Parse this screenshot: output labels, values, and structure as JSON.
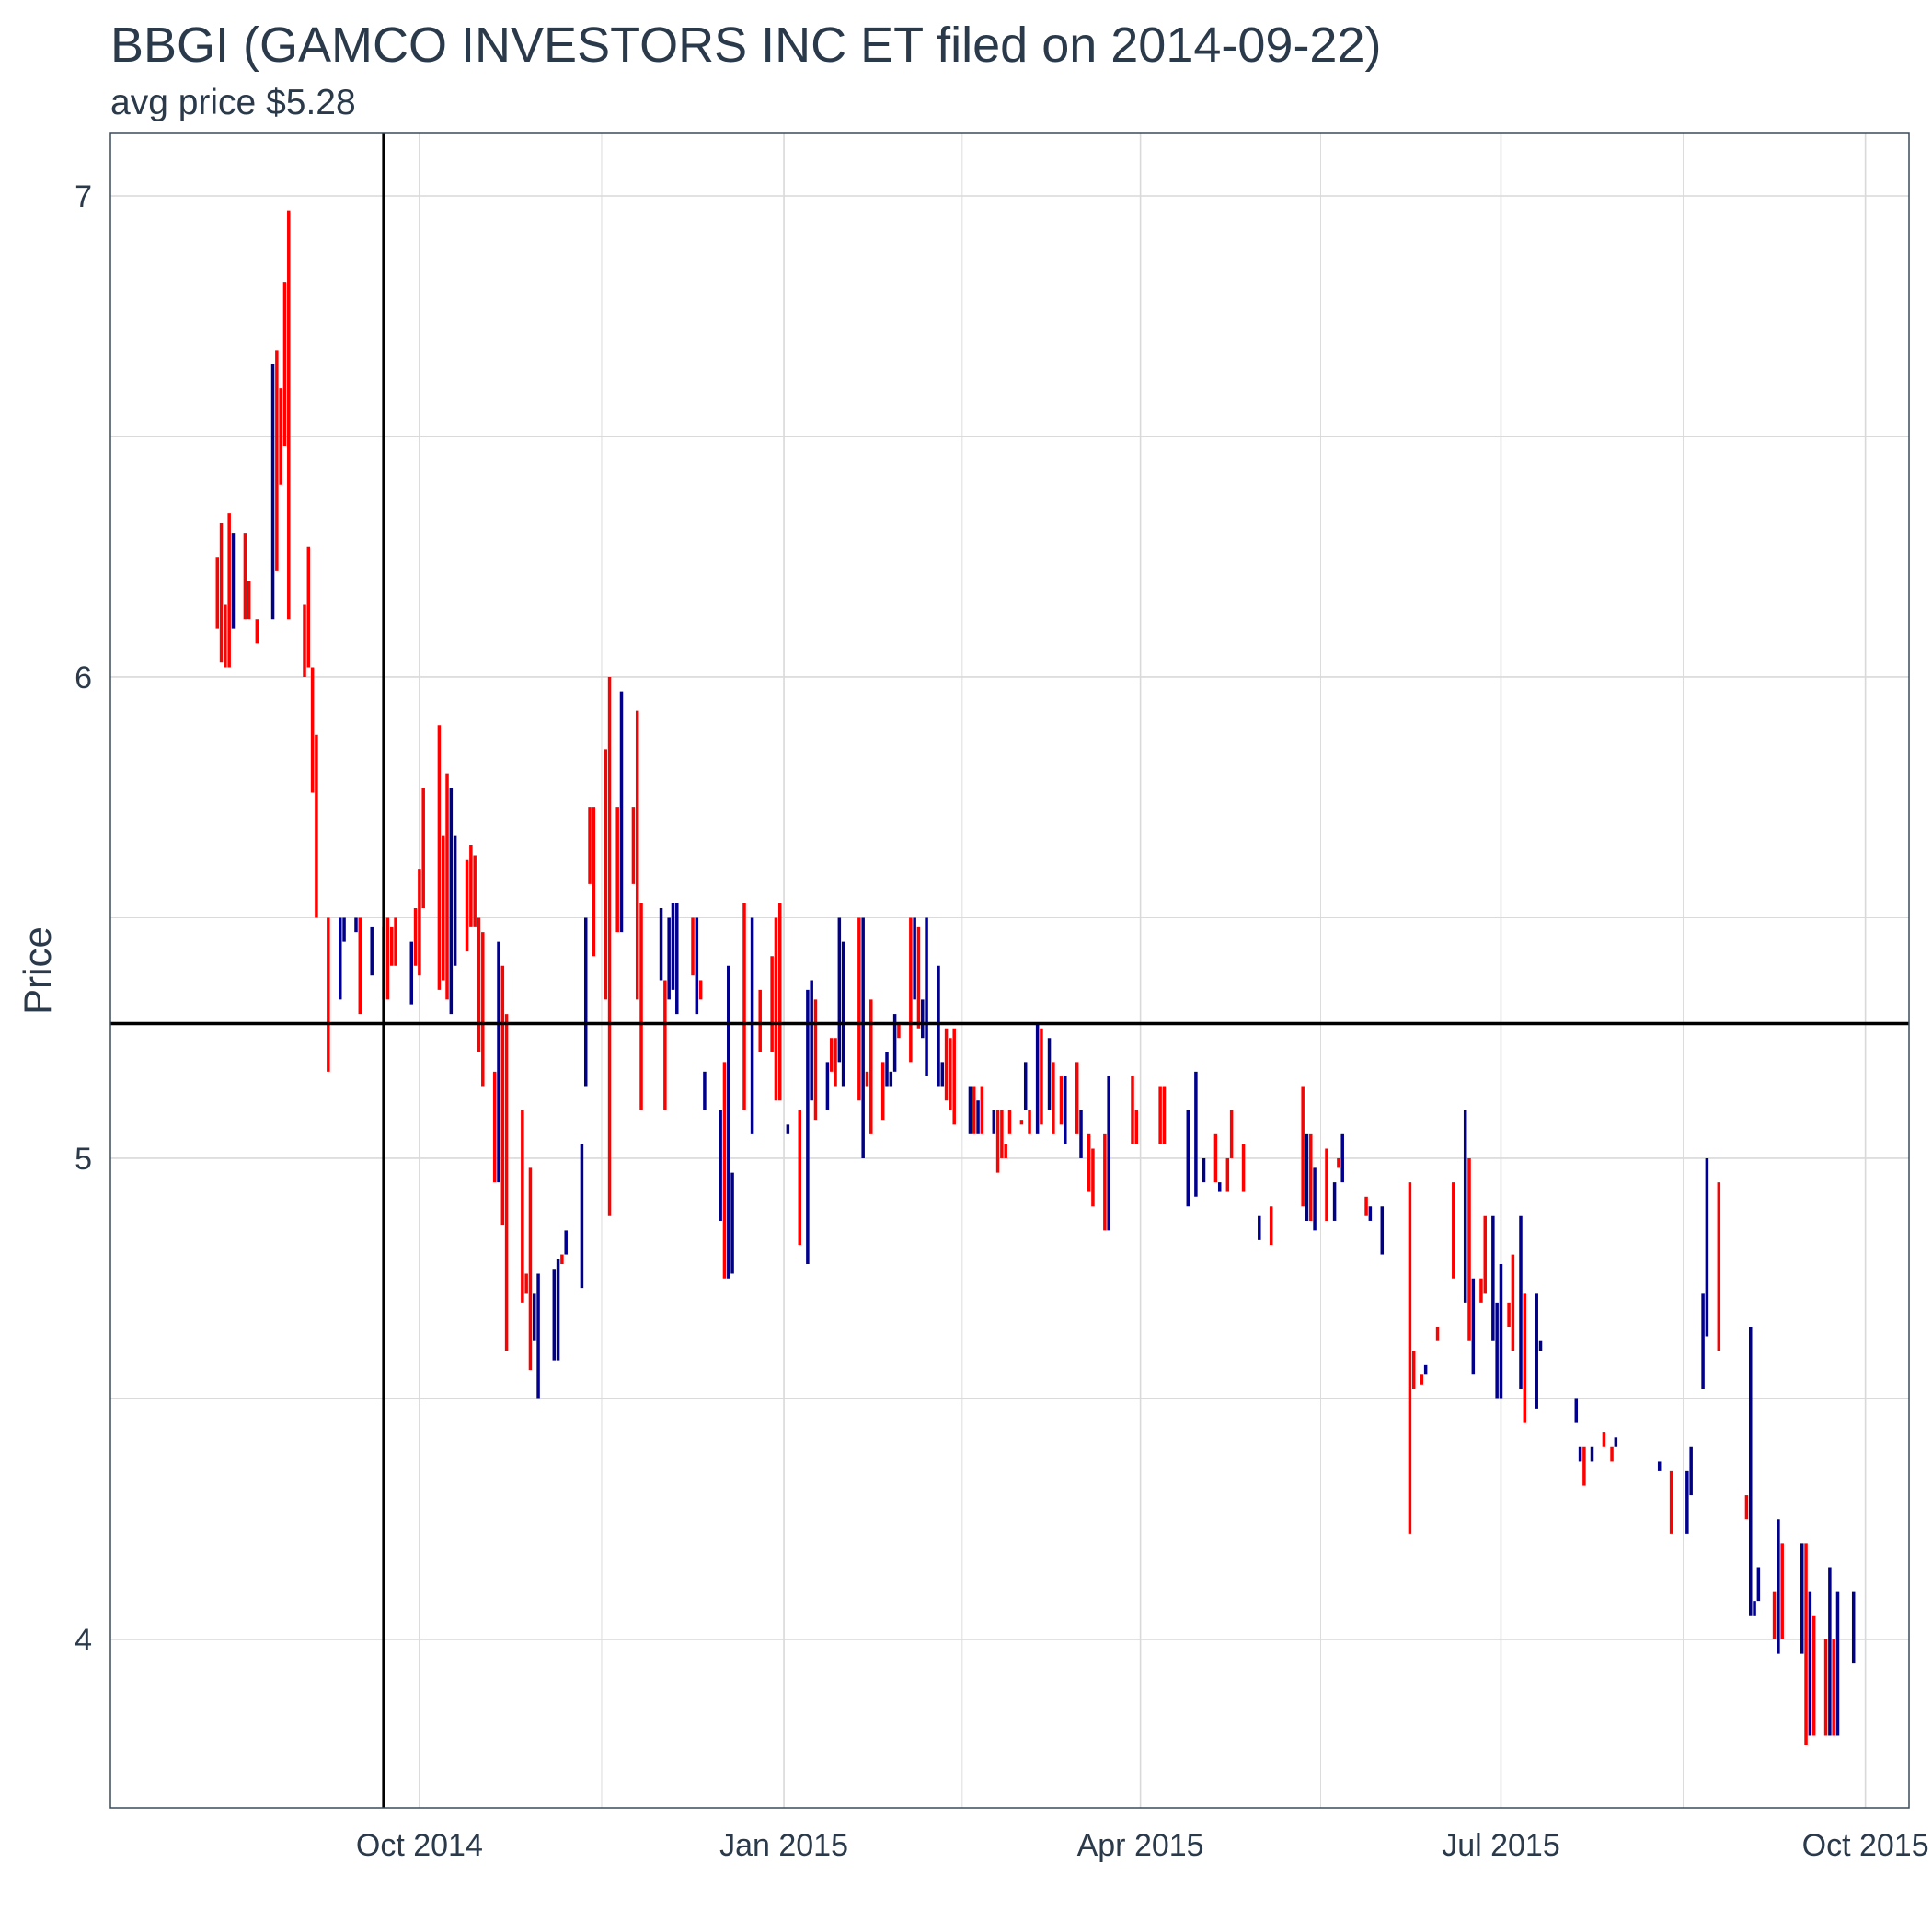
{
  "chart_data": {
    "type": "ohlc",
    "title": "BBGI (GAMCO INVESTORS  INC ET filed on 2014-09-22)",
    "subtitle": "avg price $5.28",
    "xlabel": "",
    "ylabel": "Price",
    "x_ticks": [
      {
        "date": "2014-10-01",
        "label": "Oct 2014"
      },
      {
        "date": "2015-01-01",
        "label": "Jan 2015"
      },
      {
        "date": "2015-04-01",
        "label": "Apr 2015"
      },
      {
        "date": "2015-07-01",
        "label": "Jul 2015"
      },
      {
        "date": "2015-10-01",
        "label": "Oct 2015"
      }
    ],
    "y_ticks": [
      4,
      5,
      6,
      7
    ],
    "xlim": [
      "2014-07-15",
      "2015-10-12"
    ],
    "ylim": [
      3.65,
      7.13
    ],
    "grid": true,
    "reference_lines": {
      "vline_date": "2014-09-22",
      "hline_value": 5.28
    },
    "colors": {
      "up": "#00008b",
      "down": "#ff0000",
      "reference": "#000000",
      "grid": "#d9d9d9",
      "text": "#2b3a4a"
    },
    "bars": [
      [
        "2014-08-11",
        6.25,
        6.1,
        "d"
      ],
      [
        "2014-08-12",
        6.32,
        6.03,
        "d"
      ],
      [
        "2014-08-13",
        6.15,
        6.02,
        "d"
      ],
      [
        "2014-08-14",
        6.34,
        6.02,
        "d"
      ],
      [
        "2014-08-15",
        6.3,
        6.1,
        "u"
      ],
      [
        "2014-08-18",
        6.3,
        6.12,
        "d"
      ],
      [
        "2014-08-19",
        6.2,
        6.12,
        "d"
      ],
      [
        "2014-08-21",
        6.12,
        6.07,
        "d"
      ],
      [
        "2014-08-25",
        6.65,
        6.12,
        "u"
      ],
      [
        "2014-08-26",
        6.68,
        6.22,
        "d"
      ],
      [
        "2014-08-27",
        6.6,
        6.4,
        "d"
      ],
      [
        "2014-08-28",
        6.82,
        6.48,
        "d"
      ],
      [
        "2014-08-29",
        6.97,
        6.12,
        "d"
      ],
      [
        "2014-09-02",
        6.15,
        6.0,
        "d"
      ],
      [
        "2014-09-03",
        6.27,
        6.02,
        "d"
      ],
      [
        "2014-09-04",
        6.02,
        5.76,
        "d"
      ],
      [
        "2014-09-05",
        5.88,
        5.5,
        "d"
      ],
      [
        "2014-09-08",
        5.5,
        5.18,
        "d"
      ],
      [
        "2014-09-11",
        5.5,
        5.33,
        "u"
      ],
      [
        "2014-09-12",
        5.5,
        5.45,
        "u"
      ],
      [
        "2014-09-15",
        5.5,
        5.47,
        "u"
      ],
      [
        "2014-09-16",
        5.5,
        5.3,
        "d"
      ],
      [
        "2014-09-19",
        5.48,
        5.38,
        "u"
      ],
      [
        "2014-09-22",
        5.48,
        5.33,
        "d"
      ],
      [
        "2014-09-23",
        5.5,
        5.33,
        "d"
      ],
      [
        "2014-09-24",
        5.48,
        5.4,
        "d"
      ],
      [
        "2014-09-25",
        5.5,
        5.4,
        "d"
      ],
      [
        "2014-09-29",
        5.45,
        5.32,
        "u"
      ],
      [
        "2014-09-30",
        5.52,
        5.4,
        "d"
      ],
      [
        "2014-10-01",
        5.6,
        5.38,
        "d"
      ],
      [
        "2014-10-02",
        5.77,
        5.52,
        "d"
      ],
      [
        "2014-10-06",
        5.9,
        5.35,
        "d"
      ],
      [
        "2014-10-07",
        5.67,
        5.37,
        "d"
      ],
      [
        "2014-10-08",
        5.8,
        5.33,
        "d"
      ],
      [
        "2014-10-09",
        5.77,
        5.3,
        "u"
      ],
      [
        "2014-10-10",
        5.67,
        5.4,
        "u"
      ],
      [
        "2014-10-13",
        5.62,
        5.43,
        "d"
      ],
      [
        "2014-10-14",
        5.65,
        5.48,
        "d"
      ],
      [
        "2014-10-15",
        5.63,
        5.48,
        "d"
      ],
      [
        "2014-10-16",
        5.5,
        5.22,
        "d"
      ],
      [
        "2014-10-17",
        5.47,
        5.15,
        "d"
      ],
      [
        "2014-10-20",
        5.18,
        4.95,
        "d"
      ],
      [
        "2014-10-21",
        5.45,
        4.95,
        "u"
      ],
      [
        "2014-10-22",
        5.4,
        4.86,
        "d"
      ],
      [
        "2014-10-23",
        5.3,
        4.6,
        "d"
      ],
      [
        "2014-10-27",
        5.1,
        4.7,
        "d"
      ],
      [
        "2014-10-28",
        4.76,
        4.72,
        "d"
      ],
      [
        "2014-10-29",
        4.98,
        4.56,
        "d"
      ],
      [
        "2014-10-30",
        4.72,
        4.62,
        "u"
      ],
      [
        "2014-10-31",
        4.76,
        4.5,
        "u"
      ],
      [
        "2014-11-04",
        4.77,
        4.58,
        "u"
      ],
      [
        "2014-11-05",
        4.79,
        4.58,
        "u"
      ],
      [
        "2014-11-06",
        4.8,
        4.78,
        "d"
      ],
      [
        "2014-11-07",
        4.85,
        4.8,
        "u"
      ],
      [
        "2014-11-11",
        5.03,
        4.73,
        "u"
      ],
      [
        "2014-11-12",
        5.5,
        5.15,
        "u"
      ],
      [
        "2014-11-13",
        5.73,
        5.57,
        "d"
      ],
      [
        "2014-11-14",
        5.73,
        5.42,
        "d"
      ],
      [
        "2014-11-17",
        5.85,
        5.33,
        "d"
      ],
      [
        "2014-11-18",
        6.0,
        4.88,
        "d"
      ],
      [
        "2014-11-20",
        5.73,
        5.47,
        "d"
      ],
      [
        "2014-11-21",
        5.97,
        5.47,
        "u"
      ],
      [
        "2014-11-24",
        5.73,
        5.57,
        "d"
      ],
      [
        "2014-11-25",
        5.93,
        5.33,
        "d"
      ],
      [
        "2014-11-26",
        5.53,
        5.1,
        "d"
      ],
      [
        "2014-12-01",
        5.52,
        5.37,
        "u"
      ],
      [
        "2014-12-02",
        5.37,
        5.1,
        "d"
      ],
      [
        "2014-12-03",
        5.5,
        5.33,
        "u"
      ],
      [
        "2014-12-04",
        5.53,
        5.35,
        "u"
      ],
      [
        "2014-12-05",
        5.53,
        5.3,
        "u"
      ],
      [
        "2014-12-09",
        5.5,
        5.38,
        "d"
      ],
      [
        "2014-12-10",
        5.5,
        5.3,
        "u"
      ],
      [
        "2014-12-11",
        5.37,
        5.33,
        "d"
      ],
      [
        "2014-12-12",
        5.18,
        5.1,
        "u"
      ],
      [
        "2014-12-16",
        5.1,
        4.87,
        "u"
      ],
      [
        "2014-12-17",
        5.2,
        4.75,
        "d"
      ],
      [
        "2014-12-18",
        5.4,
        4.75,
        "u"
      ],
      [
        "2014-12-19",
        4.97,
        4.76,
        "u"
      ],
      [
        "2014-12-22",
        5.53,
        5.1,
        "d"
      ],
      [
        "2014-12-24",
        5.5,
        5.05,
        "u"
      ],
      [
        "2014-12-26",
        5.35,
        5.22,
        "d"
      ],
      [
        "2014-12-29",
        5.42,
        5.22,
        "d"
      ],
      [
        "2014-12-30",
        5.5,
        5.12,
        "d"
      ],
      [
        "2014-12-31",
        5.53,
        5.12,
        "d"
      ],
      [
        "2015-01-02",
        5.07,
        5.05,
        "u"
      ],
      [
        "2015-01-05",
        5.1,
        4.82,
        "d"
      ],
      [
        "2015-01-07",
        5.35,
        4.78,
        "u"
      ],
      [
        "2015-01-08",
        5.37,
        5.12,
        "u"
      ],
      [
        "2015-01-09",
        5.33,
        5.08,
        "d"
      ],
      [
        "2015-01-12",
        5.2,
        5.1,
        "u"
      ],
      [
        "2015-01-13",
        5.25,
        5.18,
        "d"
      ],
      [
        "2015-01-14",
        5.25,
        5.15,
        "d"
      ],
      [
        "2015-01-15",
        5.5,
        5.2,
        "u"
      ],
      [
        "2015-01-16",
        5.45,
        5.15,
        "u"
      ],
      [
        "2015-01-20",
        5.5,
        5.12,
        "d"
      ],
      [
        "2015-01-21",
        5.5,
        5.0,
        "u"
      ],
      [
        "2015-01-22",
        5.18,
        5.15,
        "d"
      ],
      [
        "2015-01-23",
        5.33,
        5.05,
        "d"
      ],
      [
        "2015-01-26",
        5.2,
        5.08,
        "d"
      ],
      [
        "2015-01-27",
        5.22,
        5.15,
        "u"
      ],
      [
        "2015-01-28",
        5.18,
        5.15,
        "u"
      ],
      [
        "2015-01-29",
        5.3,
        5.18,
        "u"
      ],
      [
        "2015-01-30",
        5.28,
        5.25,
        "d"
      ],
      [
        "2015-02-02",
        5.5,
        5.2,
        "d"
      ],
      [
        "2015-02-03",
        5.5,
        5.33,
        "u"
      ],
      [
        "2015-02-04",
        5.48,
        5.27,
        "d"
      ],
      [
        "2015-02-05",
        5.33,
        5.25,
        "u"
      ],
      [
        "2015-02-06",
        5.5,
        5.17,
        "u"
      ],
      [
        "2015-02-09",
        5.4,
        5.15,
        "u"
      ],
      [
        "2015-02-10",
        5.2,
        5.15,
        "u"
      ],
      [
        "2015-02-11",
        5.27,
        5.12,
        "d"
      ],
      [
        "2015-02-12",
        5.25,
        5.1,
        "d"
      ],
      [
        "2015-02-13",
        5.27,
        5.07,
        "d"
      ],
      [
        "2015-02-17",
        5.15,
        5.05,
        "u"
      ],
      [
        "2015-02-18",
        5.15,
        5.05,
        "d"
      ],
      [
        "2015-02-19",
        5.12,
        5.05,
        "u"
      ],
      [
        "2015-02-20",
        5.15,
        5.05,
        "d"
      ],
      [
        "2015-02-23",
        5.1,
        5.05,
        "u"
      ],
      [
        "2015-02-24",
        5.1,
        4.97,
        "d"
      ],
      [
        "2015-02-25",
        5.1,
        5.0,
        "d"
      ],
      [
        "2015-02-26",
        5.03,
        5.0,
        "d"
      ],
      [
        "2015-02-27",
        5.1,
        5.05,
        "d"
      ],
      [
        "2015-03-02",
        5.08,
        5.07,
        "d"
      ],
      [
        "2015-03-03",
        5.2,
        5.1,
        "u"
      ],
      [
        "2015-03-04",
        5.1,
        5.05,
        "d"
      ],
      [
        "2015-03-06",
        5.28,
        5.05,
        "u"
      ],
      [
        "2015-03-07",
        5.27,
        5.07,
        "d"
      ],
      [
        "2015-03-09",
        5.25,
        5.1,
        "u"
      ],
      [
        "2015-03-10",
        5.2,
        5.05,
        "d"
      ],
      [
        "2015-03-12",
        5.17,
        5.07,
        "d"
      ],
      [
        "2015-03-13",
        5.17,
        5.03,
        "u"
      ],
      [
        "2015-03-16",
        5.2,
        5.05,
        "d"
      ],
      [
        "2015-03-17",
        5.1,
        5.0,
        "u"
      ],
      [
        "2015-03-19",
        5.05,
        4.93,
        "d"
      ],
      [
        "2015-03-20",
        5.02,
        4.9,
        "d"
      ],
      [
        "2015-03-23",
        5.05,
        4.85,
        "d"
      ],
      [
        "2015-03-24",
        5.17,
        4.85,
        "u"
      ],
      [
        "2015-03-30",
        5.17,
        5.03,
        "d"
      ],
      [
        "2015-03-31",
        5.1,
        5.03,
        "d"
      ],
      [
        "2015-04-06",
        5.15,
        5.03,
        "d"
      ],
      [
        "2015-04-07",
        5.15,
        5.03,
        "d"
      ],
      [
        "2015-04-13",
        5.1,
        4.9,
        "u"
      ],
      [
        "2015-04-15",
        5.18,
        4.92,
        "u"
      ],
      [
        "2015-04-17",
        5.0,
        4.95,
        "u"
      ],
      [
        "2015-04-20",
        5.05,
        4.95,
        "d"
      ],
      [
        "2015-04-21",
        4.95,
        4.93,
        "u"
      ],
      [
        "2015-04-23",
        5.0,
        4.93,
        "d"
      ],
      [
        "2015-04-24",
        5.1,
        5.0,
        "d"
      ],
      [
        "2015-04-27",
        5.03,
        4.93,
        "d"
      ],
      [
        "2015-05-01",
        4.88,
        4.83,
        "u"
      ],
      [
        "2015-05-04",
        4.9,
        4.82,
        "d"
      ],
      [
        "2015-05-12",
        5.15,
        4.9,
        "d"
      ],
      [
        "2015-05-13",
        5.05,
        4.87,
        "u"
      ],
      [
        "2015-05-14",
        5.05,
        4.87,
        "d"
      ],
      [
        "2015-05-15",
        4.98,
        4.85,
        "u"
      ],
      [
        "2015-05-18",
        5.02,
        4.87,
        "d"
      ],
      [
        "2015-05-20",
        4.95,
        4.87,
        "u"
      ],
      [
        "2015-05-21",
        5.0,
        4.98,
        "d"
      ],
      [
        "2015-05-22",
        5.05,
        4.95,
        "u"
      ],
      [
        "2015-05-28",
        4.92,
        4.88,
        "d"
      ],
      [
        "2015-05-29",
        4.9,
        4.87,
        "u"
      ],
      [
        "2015-06-01",
        4.9,
        4.8,
        "u"
      ],
      [
        "2015-06-08",
        4.95,
        4.22,
        "d"
      ],
      [
        "2015-06-09",
        4.6,
        4.52,
        "d"
      ],
      [
        "2015-06-11",
        4.55,
        4.53,
        "d"
      ],
      [
        "2015-06-12",
        4.57,
        4.55,
        "u"
      ],
      [
        "2015-06-15",
        4.65,
        4.62,
        "d"
      ],
      [
        "2015-06-19",
        4.95,
        4.75,
        "d"
      ],
      [
        "2015-06-22",
        5.1,
        4.7,
        "u"
      ],
      [
        "2015-06-23",
        5.0,
        4.62,
        "d"
      ],
      [
        "2015-06-24",
        4.75,
        4.55,
        "u"
      ],
      [
        "2015-06-26",
        4.75,
        4.7,
        "d"
      ],
      [
        "2015-06-27",
        4.88,
        4.72,
        "d"
      ],
      [
        "2015-06-29",
        4.88,
        4.62,
        "u"
      ],
      [
        "2015-06-30",
        4.7,
        4.5,
        "u"
      ],
      [
        "2015-07-01",
        4.78,
        4.5,
        "u"
      ],
      [
        "2015-07-03",
        4.7,
        4.65,
        "d"
      ],
      [
        "2015-07-04",
        4.8,
        4.6,
        "d"
      ],
      [
        "2015-07-06",
        4.88,
        4.52,
        "u"
      ],
      [
        "2015-07-07",
        4.72,
        4.45,
        "d"
      ],
      [
        "2015-07-10",
        4.72,
        4.48,
        "u"
      ],
      [
        "2015-07-11",
        4.62,
        4.6,
        "u"
      ],
      [
        "2015-07-20",
        4.5,
        4.45,
        "u"
      ],
      [
        "2015-07-21",
        4.4,
        4.37,
        "u"
      ],
      [
        "2015-07-22",
        4.4,
        4.32,
        "d"
      ],
      [
        "2015-07-24",
        4.4,
        4.37,
        "u"
      ],
      [
        "2015-07-27",
        4.43,
        4.4,
        "d"
      ],
      [
        "2015-07-29",
        4.4,
        4.37,
        "d"
      ],
      [
        "2015-07-30",
        4.42,
        4.4,
        "u"
      ],
      [
        "2015-08-10",
        4.37,
        4.35,
        "u"
      ],
      [
        "2015-08-13",
        4.35,
        4.22,
        "d"
      ],
      [
        "2015-08-17",
        4.35,
        4.22,
        "u"
      ],
      [
        "2015-08-18",
        4.4,
        4.3,
        "u"
      ],
      [
        "2015-08-21",
        4.72,
        4.52,
        "u"
      ],
      [
        "2015-08-22",
        5.0,
        4.63,
        "u"
      ],
      [
        "2015-08-25",
        4.95,
        4.6,
        "d"
      ],
      [
        "2015-09-01",
        4.3,
        4.25,
        "d"
      ],
      [
        "2015-09-02",
        4.65,
        4.05,
        "u"
      ],
      [
        "2015-09-03",
        4.08,
        4.05,
        "u"
      ],
      [
        "2015-09-04",
        4.15,
        4.08,
        "u"
      ],
      [
        "2015-09-08",
        4.1,
        4.0,
        "d"
      ],
      [
        "2015-09-09",
        4.25,
        3.97,
        "u"
      ],
      [
        "2015-09-10",
        4.2,
        4.0,
        "d"
      ],
      [
        "2015-09-15",
        4.2,
        3.97,
        "u"
      ],
      [
        "2015-09-16",
        4.2,
        3.78,
        "d"
      ],
      [
        "2015-09-17",
        4.1,
        3.8,
        "u"
      ],
      [
        "2015-09-18",
        4.05,
        3.8,
        "d"
      ],
      [
        "2015-09-21",
        4.0,
        3.8,
        "d"
      ],
      [
        "2015-09-22",
        4.15,
        3.8,
        "u"
      ],
      [
        "2015-09-23",
        4.0,
        3.8,
        "d"
      ],
      [
        "2015-09-24",
        4.1,
        3.8,
        "u"
      ],
      [
        "2015-09-28",
        4.1,
        3.95,
        "u"
      ]
    ]
  }
}
